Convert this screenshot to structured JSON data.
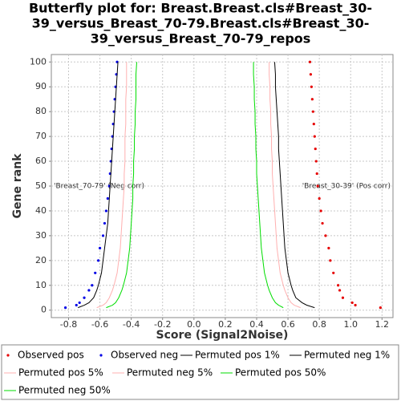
{
  "chart_data": {
    "type": "butterfly",
    "title": [
      "Butterfly plot for: Breast.Breast.cls#Breast_30-",
      "39_versus_Breast_70-79.Breast.cls#Breast_30-",
      "39_versus_Breast_70-79_repos"
    ],
    "x_label": "Score (Signal2Noise)",
    "y_label": "Gene rank",
    "xlim": [
      -0.91,
      1.27
    ],
    "ylim": [
      -3,
      103
    ],
    "xticks": [
      -0.8,
      -0.6,
      -0.4,
      -0.2,
      {
        "value": 0,
        "label": "0.0"
      },
      0.2,
      0.4,
      0.6,
      0.8,
      {
        "value": 1,
        "label": "1.0"
      },
      1.2
    ],
    "yticks": [
      0,
      10,
      20,
      30,
      40,
      50,
      60,
      70,
      80,
      90,
      100
    ],
    "grid": true,
    "y": [
      1,
      2,
      3,
      5,
      8,
      10,
      15,
      20,
      25,
      30,
      35,
      40,
      45,
      50,
      55,
      60,
      65,
      70,
      75,
      80,
      85,
      90,
      95,
      100
    ],
    "series": [
      {
        "name": "Observed pos",
        "color": "#e60000",
        "style": "dots",
        "values": [
          1.19,
          1.03,
          1.01,
          0.95,
          0.93,
          0.92,
          0.89,
          0.87,
          0.86,
          0.84,
          0.82,
          0.81,
          0.8,
          0.79,
          0.785,
          0.78,
          0.775,
          0.77,
          0.765,
          0.76,
          0.755,
          0.75,
          0.745,
          0.74
        ]
      },
      {
        "name": "Observed neg",
        "color": "#0000e6",
        "style": "dots",
        "values": [
          -0.82,
          -0.75,
          -0.73,
          -0.7,
          -0.67,
          -0.65,
          -0.63,
          -0.61,
          -0.6,
          -0.58,
          -0.57,
          -0.56,
          -0.55,
          -0.54,
          -0.535,
          -0.53,
          -0.525,
          -0.52,
          -0.515,
          -0.51,
          -0.505,
          -0.5,
          -0.495,
          -0.49
        ]
      },
      {
        "name": "Permuted pos 1%",
        "color": "#000000",
        "style": "line",
        "values": [
          0.77,
          0.72,
          0.69,
          0.65,
          0.63,
          0.62,
          0.6,
          0.59,
          0.58,
          0.575,
          0.57,
          0.565,
          0.56,
          0.555,
          0.55,
          0.545,
          0.54,
          0.54,
          0.535,
          0.53,
          0.525,
          0.52,
          0.52,
          0.515
        ]
      },
      {
        "name": "Permuted neg 1%",
        "color": "#000000",
        "style": "line",
        "values": [
          -0.74,
          -0.7,
          -0.67,
          -0.64,
          -0.62,
          -0.61,
          -0.59,
          -0.58,
          -0.57,
          -0.56,
          -0.55,
          -0.545,
          -0.54,
          -0.535,
          -0.53,
          -0.525,
          -0.52,
          -0.515,
          -0.51,
          -0.505,
          -0.5,
          -0.495,
          -0.49,
          -0.485
        ]
      },
      {
        "name": "Permuted pos 5%",
        "color": "#ffb0b0",
        "style": "line",
        "values": [
          0.68,
          0.64,
          0.62,
          0.6,
          0.58,
          0.57,
          0.55,
          0.54,
          0.53,
          0.525,
          0.52,
          0.515,
          0.51,
          0.505,
          0.5,
          0.5,
          0.495,
          0.495,
          0.49,
          0.49,
          0.485,
          0.485,
          0.48,
          0.48
        ]
      },
      {
        "name": "Permuted neg 5%",
        "color": "#ffb0b0",
        "style": "line",
        "values": [
          -0.62,
          -0.58,
          -0.56,
          -0.54,
          -0.52,
          -0.51,
          -0.49,
          -0.48,
          -0.47,
          -0.465,
          -0.46,
          -0.455,
          -0.45,
          -0.445,
          -0.445,
          -0.44,
          -0.44,
          -0.44,
          -0.435,
          -0.435,
          -0.435,
          -0.43,
          -0.43,
          -0.43
        ]
      },
      {
        "name": "Permuted pos 50%",
        "color": "#00dd00",
        "style": "line",
        "values": [
          0.57,
          0.54,
          0.52,
          0.5,
          0.48,
          0.47,
          0.45,
          0.44,
          0.43,
          0.425,
          0.42,
          0.415,
          0.41,
          0.405,
          0.4,
          0.4,
          0.395,
          0.395,
          0.39,
          0.39,
          0.385,
          0.385,
          0.38,
          0.38
        ]
      },
      {
        "name": "Permuted neg 50%",
        "color": "#00dd00",
        "style": "line",
        "values": [
          -0.56,
          -0.52,
          -0.5,
          -0.48,
          -0.46,
          -0.45,
          -0.43,
          -0.42,
          -0.41,
          -0.405,
          -0.4,
          -0.395,
          -0.39,
          -0.39,
          -0.385,
          -0.385,
          -0.38,
          -0.38,
          -0.375,
          -0.375,
          -0.37,
          -0.37,
          -0.37,
          -0.365
        ]
      }
    ],
    "annotations": [
      {
        "text": "'Breast_70-79' (Neg corr)",
        "color": "#0000e6"
      },
      {
        "text": "'Breast_30-39' (Pos corr)",
        "color": "#e60000"
      }
    ]
  }
}
